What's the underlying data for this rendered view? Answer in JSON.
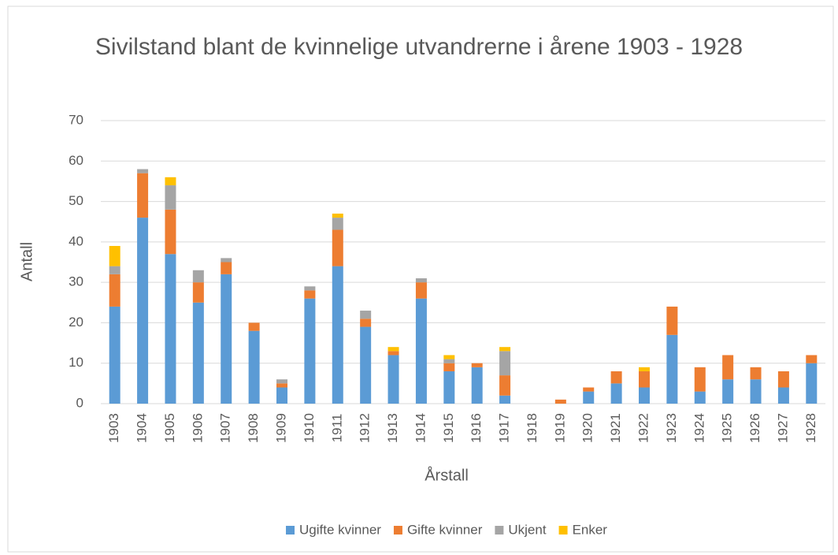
{
  "chart_data": {
    "type": "stacked_bar",
    "title": "Sivilstand blant de kvinnelige utvandrerne i årene 1903 - 1928",
    "x_label": "Årstall",
    "y_label": "Antall",
    "categories": [
      "1903",
      "1904",
      "1905",
      "1906",
      "1907",
      "1908",
      "1909",
      "1910",
      "1911",
      "1912",
      "1913",
      "1914",
      "1915",
      "1916",
      "1917",
      "1918",
      "1919",
      "1920",
      "1921",
      "1922",
      "1923",
      "1924",
      "1925",
      "1926",
      "1927",
      "1928"
    ],
    "series": [
      {
        "name": "Ugifte kvinner",
        "color": "#5b9bd5",
        "values": [
          24,
          46,
          37,
          25,
          32,
          18,
          4,
          26,
          34,
          19,
          12,
          26,
          8,
          9,
          2,
          0,
          0,
          3,
          5,
          4,
          17,
          3,
          6,
          6,
          4,
          10
        ]
      },
      {
        "name": "Gifte kvinner",
        "color": "#ed7d31",
        "values": [
          8,
          11,
          11,
          5,
          3,
          2,
          1,
          2,
          9,
          2,
          1,
          4,
          2,
          1,
          5,
          0,
          1,
          1,
          3,
          4,
          7,
          6,
          6,
          3,
          4,
          2
        ]
      },
      {
        "name": "Ukjent",
        "color": "#a5a5a5",
        "values": [
          2,
          1,
          6,
          3,
          1,
          0,
          1,
          1,
          3,
          2,
          0,
          1,
          1,
          0,
          6,
          0,
          0,
          0,
          0,
          0,
          0,
          0,
          0,
          0,
          0,
          0
        ]
      },
      {
        "name": "Enker",
        "color": "#ffc000",
        "values": [
          5,
          0,
          2,
          0,
          0,
          0,
          0,
          0,
          1,
          0,
          1,
          0,
          1,
          0,
          1,
          0,
          0,
          0,
          0,
          1,
          0,
          0,
          0,
          0,
          0,
          0
        ]
      }
    ],
    "ylim": [
      0,
      70
    ],
    "yticks": [
      0,
      10,
      20,
      30,
      40,
      50,
      60,
      70
    ],
    "grid": true,
    "legend": "bottom"
  }
}
